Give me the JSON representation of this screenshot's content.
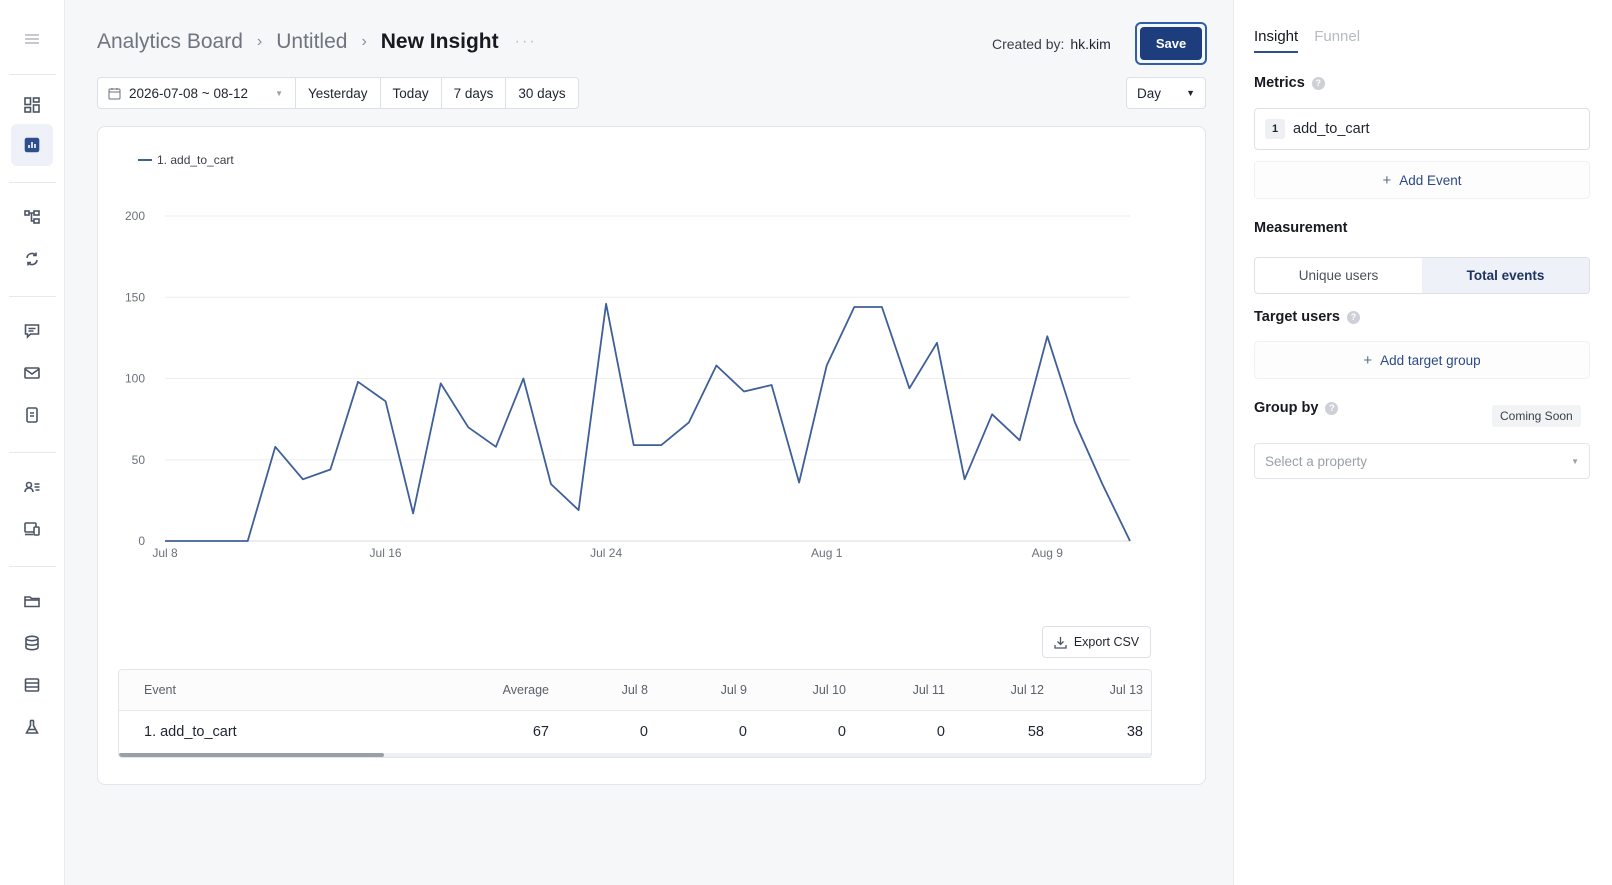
{
  "breadcrumb": {
    "board": "Analytics Board",
    "folder": "Untitled",
    "insight": "New Insight",
    "more": "···"
  },
  "header": {
    "created_label": "Created by:",
    "created_user": "hk.kim",
    "save_label": "Save"
  },
  "date_filter": {
    "range": "2026-07-08 ~ 08-12",
    "presets": [
      "Yesterday",
      "Today",
      "7 days",
      "30 days"
    ],
    "interval": "Day"
  },
  "legend": {
    "series": "1. add_to_cart"
  },
  "export_label": "Export CSV",
  "table": {
    "headers": [
      "Event",
      "Average",
      "Jul 8",
      "Jul 9",
      "Jul 10",
      "Jul 11",
      "Jul 12",
      "Jul 13"
    ],
    "row": [
      "1. add_to_cart",
      "67",
      "0",
      "0",
      "0",
      "0",
      "58",
      "38"
    ]
  },
  "chart_data": {
    "type": "line",
    "x_tick_labels": [
      "Jul 8",
      "Jul 16",
      "Jul 24",
      "Aug 1",
      "Aug 9"
    ],
    "ylim": [
      0,
      200
    ],
    "y_ticks": [
      0,
      50,
      100,
      150,
      200
    ],
    "grid": true,
    "legend_position": "top-left",
    "series": [
      {
        "name": "1. add_to_cart",
        "color": "#3e5f99",
        "x": [
          "Jul 8",
          "Jul 9",
          "Jul 10",
          "Jul 11",
          "Jul 12",
          "Jul 13",
          "Jul 14",
          "Jul 15",
          "Jul 16",
          "Jul 17",
          "Jul 18",
          "Jul 19",
          "Jul 20",
          "Jul 21",
          "Jul 22",
          "Jul 23",
          "Jul 24",
          "Jul 25",
          "Jul 26",
          "Jul 27",
          "Jul 28",
          "Jul 29",
          "Jul 30",
          "Jul 31",
          "Aug 1",
          "Aug 2",
          "Aug 3",
          "Aug 4",
          "Aug 5",
          "Aug 6",
          "Aug 7",
          "Aug 8",
          "Aug 9",
          "Aug 10",
          "Aug 11",
          "Aug 12"
        ],
        "values": [
          0,
          0,
          0,
          0,
          58,
          38,
          44,
          98,
          86,
          17,
          97,
          70,
          58,
          100,
          35,
          19,
          146,
          59,
          59,
          73,
          108,
          92,
          96,
          36,
          108,
          144,
          144,
          94,
          122,
          38,
          78,
          62,
          126,
          73,
          35,
          0
        ]
      }
    ]
  },
  "side": {
    "tabs": [
      "Insight",
      "Funnel"
    ],
    "metrics_label": "Metrics",
    "metric_index": "1",
    "metric_event": "add_to_cart",
    "add_event": "Add Event",
    "measurement_label": "Measurement",
    "measurement_options": [
      "Unique users",
      "Total events"
    ],
    "target_label": "Target users",
    "add_target": "Add target group",
    "group_label": "Group by",
    "coming_soon": "Coming Soon",
    "property_placeholder": "Select a property"
  }
}
